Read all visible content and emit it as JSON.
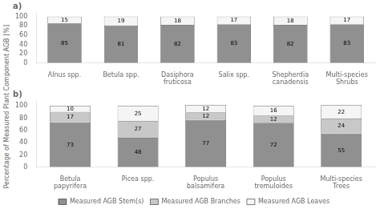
{
  "chart_data": [
    {
      "type": "bar",
      "title": "a)",
      "stacked": true,
      "data_labels": true,
      "grid": false,
      "ylabel": "Percentage of Measured  Plant Component AGB [%]",
      "categories": [
        "Alnus spp.",
        "Betula spp.",
        "Dasiphora\nfruticosa",
        "Salix spp.",
        "Shepherdia\ncanadensis",
        "Multi-species\nShrubs"
      ],
      "series": [
        {
          "name": "Measured AGB Stem(s)",
          "color": "#909090",
          "values": [
            85,
            81,
            82,
            83,
            82,
            83
          ]
        },
        {
          "name": "Measured AGB Branches",
          "color": "#c8c8c8",
          "values": [
            0,
            0,
            0,
            0,
            0,
            0
          ]
        },
        {
          "name": "Measured AGB Leaves",
          "color": "#f5f5f5",
          "values": [
            15,
            19,
            18,
            17,
            18,
            17
          ]
        }
      ],
      "ylim": [
        0,
        108
      ],
      "yticks": [
        0,
        20,
        40,
        60,
        80,
        100
      ]
    },
    {
      "type": "bar",
      "title": "b)",
      "stacked": true,
      "data_labels": true,
      "grid": false,
      "legend": "bottom",
      "categories": [
        "Betula\npapyrifera",
        "Picea spp.",
        "Populus\nbalsamifera",
        "Populus\ntremuloides",
        "Multi-species\nTrees"
      ],
      "series": [
        {
          "name": "Measured AGB Stem(s)",
          "color": "#909090",
          "values": [
            73,
            48,
            77,
            72,
            55
          ]
        },
        {
          "name": "Measured AGB Branches",
          "color": "#c8c8c8",
          "values": [
            17,
            27,
            12,
            12,
            24
          ]
        },
        {
          "name": "Measured AGB Leaves",
          "color": "#f5f5f5",
          "values": [
            10,
            25,
            12,
            16,
            22
          ]
        }
      ],
      "ylim": [
        0,
        108
      ],
      "yticks": [
        0,
        20,
        40,
        60,
        80,
        100
      ]
    }
  ]
}
